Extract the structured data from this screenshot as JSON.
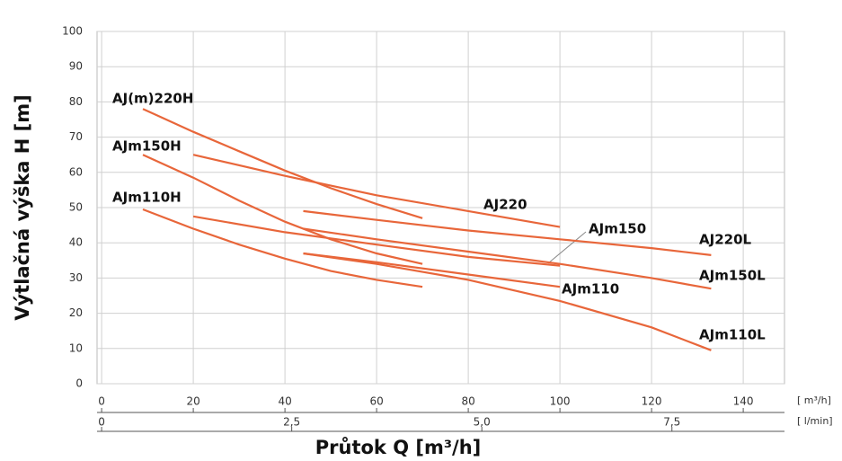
{
  "chart_data": {
    "type": "line",
    "ylabel": "Výtlačná výška H [m]",
    "xlabel": "Průtok Q [m³/h]",
    "x_unit": "[ m³/h]",
    "x2_unit": "[ l/min]",
    "xlim": [
      -1,
      149
    ],
    "xticks": [
      0,
      20,
      40,
      60,
      80,
      100,
      120,
      140
    ],
    "x2lim": [
      -0.06,
      8.98
    ],
    "x2ticks": [
      0,
      {
        "value": 2.5,
        "label": "2,5"
      },
      {
        "value": 5.0,
        "label": "5,0"
      },
      {
        "value": 7.5,
        "label": "7,5"
      }
    ],
    "ylim": [
      0,
      100
    ],
    "yticks": [
      0,
      10,
      20,
      30,
      40,
      50,
      60,
      70,
      80,
      90,
      100
    ],
    "grid": true,
    "series": [
      {
        "name": "AJ(m)220H",
        "color": "#e8663a",
        "x": [
          9,
          20,
          30,
          40,
          50,
          60,
          70
        ],
        "values": [
          78,
          71.5,
          66,
          60.5,
          55.5,
          51,
          47
        ]
      },
      {
        "name": "AJm150H",
        "color": "#e8663a",
        "x": [
          9,
          20,
          30,
          40,
          50,
          60,
          70
        ],
        "values": [
          65,
          58.5,
          52,
          46,
          41,
          37,
          34
        ]
      },
      {
        "name": "AJm110H",
        "color": "#e8663a",
        "x": [
          9,
          20,
          30,
          40,
          50,
          60,
          70
        ],
        "values": [
          49.5,
          44,
          39.5,
          35.5,
          32,
          29.5,
          27.5
        ]
      },
      {
        "name": "AJ220",
        "color": "#e8663a",
        "x": [
          20,
          40,
          60,
          80,
          100
        ],
        "values": [
          65,
          59,
          53.5,
          49,
          44.5
        ]
      },
      {
        "name": "AJm150",
        "color": "#e8663a",
        "x": [
          20,
          40,
          60,
          80,
          100
        ],
        "values": [
          47.5,
          43,
          39.5,
          36,
          33.5
        ]
      },
      {
        "name": "AJm110",
        "color": "#e8663a",
        "x": [
          44,
          60,
          80,
          100
        ],
        "values": [
          37,
          34.5,
          31,
          27.5
        ]
      },
      {
        "name": "AJ220L",
        "color": "#e8663a",
        "x": [
          44,
          60,
          80,
          100,
          120,
          133
        ],
        "values": [
          49,
          46.5,
          43.5,
          41,
          38.5,
          36.5
        ]
      },
      {
        "name": "AJm150L",
        "color": "#e8663a",
        "x": [
          44,
          60,
          80,
          100,
          120,
          133
        ],
        "values": [
          44,
          41,
          37.5,
          34,
          30,
          27
        ]
      },
      {
        "name": "AJm110L",
        "color": "#e8663a",
        "x": [
          44,
          60,
          80,
          100,
          120,
          133
        ],
        "values": [
          37,
          34,
          29.5,
          23.5,
          16,
          9.5
        ]
      }
    ]
  }
}
